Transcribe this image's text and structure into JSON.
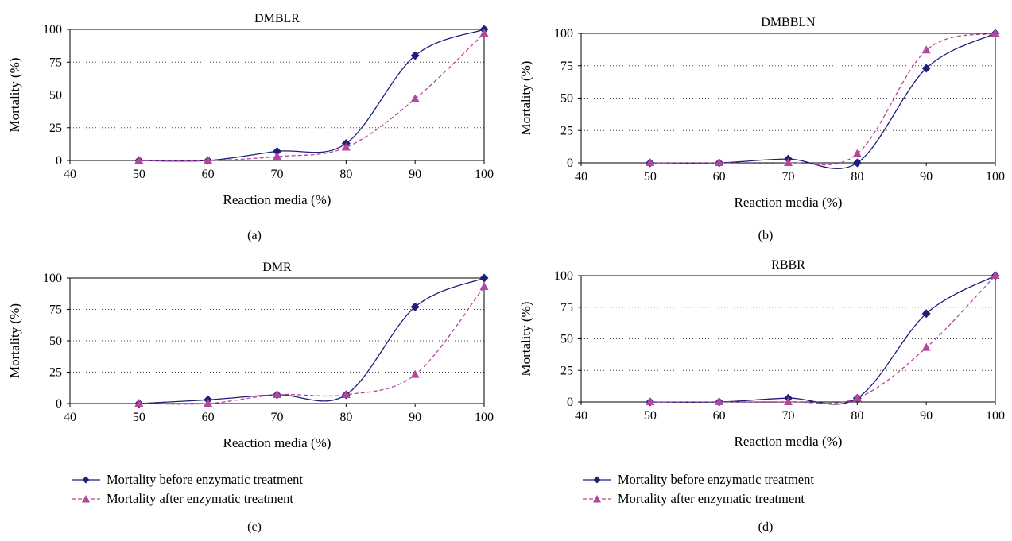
{
  "legend": {
    "before": "Mortality before enzymatic treatment",
    "after": "Mortality after enzymatic treatment"
  },
  "colors": {
    "before": "#1f1f7a",
    "after": "#b3479e",
    "grid": "#444444"
  },
  "chart_data": [
    {
      "type": "line",
      "panel": "(a)",
      "title": "DMBLR",
      "xlabel": "Reaction media (%)",
      "ylabel": "Mortality (%)",
      "xlim": [
        40,
        100
      ],
      "ylim": [
        0,
        100
      ],
      "xticks": [
        40,
        50,
        60,
        70,
        80,
        90,
        100
      ],
      "yticks": [
        0,
        25,
        50,
        75,
        100
      ],
      "grid": "horizontal dotted",
      "x": [
        50,
        60,
        70,
        80,
        90,
        100
      ],
      "series": [
        {
          "name": "Mortality before enzymatic treatment",
          "values": [
            0,
            0,
            7,
            13,
            80,
            100
          ]
        },
        {
          "name": "Mortality after enzymatic treatment",
          "values": [
            0,
            0,
            3,
            10,
            47,
            97
          ]
        }
      ]
    },
    {
      "type": "line",
      "panel": "(b)",
      "title": "DMBBLN",
      "xlabel": "Reaction media (%)",
      "ylabel": "Mortality (%)",
      "xlim": [
        40,
        100
      ],
      "ylim": [
        0,
        100
      ],
      "xticks": [
        40,
        50,
        60,
        70,
        80,
        90,
        100
      ],
      "yticks": [
        0,
        25,
        50,
        75,
        100
      ],
      "grid": "horizontal dotted",
      "x": [
        50,
        60,
        70,
        80,
        90,
        100
      ],
      "series": [
        {
          "name": "Mortality before enzymatic treatment",
          "values": [
            0,
            0,
            3,
            0,
            73,
            100
          ]
        },
        {
          "name": "Mortality after enzymatic treatment",
          "values": [
            0,
            0,
            0,
            7,
            87,
            100
          ]
        }
      ]
    },
    {
      "type": "line",
      "panel": "(c)",
      "title": "DMR",
      "xlabel": "Reaction media (%)",
      "ylabel": "Mortality (%)",
      "xlim": [
        40,
        100
      ],
      "ylim": [
        0,
        100
      ],
      "xticks": [
        40,
        50,
        60,
        70,
        80,
        90,
        100
      ],
      "yticks": [
        0,
        25,
        50,
        75,
        100
      ],
      "grid": "horizontal dotted",
      "x": [
        50,
        60,
        70,
        80,
        90,
        100
      ],
      "series": [
        {
          "name": "Mortality before enzymatic treatment",
          "values": [
            0,
            3,
            7,
            7,
            77,
            100
          ]
        },
        {
          "name": "Mortality after enzymatic treatment",
          "values": [
            0,
            0,
            7,
            7,
            23,
            93
          ]
        }
      ]
    },
    {
      "type": "line",
      "panel": "(d)",
      "title": "RBBR",
      "xlabel": "Reaction media (%)",
      "ylabel": "Mortality (%)",
      "xlim": [
        40,
        100
      ],
      "ylim": [
        0,
        100
      ],
      "xticks": [
        40,
        50,
        60,
        70,
        80,
        90,
        100
      ],
      "yticks": [
        0,
        25,
        50,
        75,
        100
      ],
      "grid": "horizontal dotted",
      "x": [
        50,
        60,
        70,
        80,
        90,
        100
      ],
      "series": [
        {
          "name": "Mortality before enzymatic treatment",
          "values": [
            0,
            0,
            3,
            3,
            70,
            100
          ]
        },
        {
          "name": "Mortality after enzymatic treatment",
          "values": [
            0,
            0,
            0,
            3,
            43,
            100
          ]
        }
      ]
    }
  ]
}
